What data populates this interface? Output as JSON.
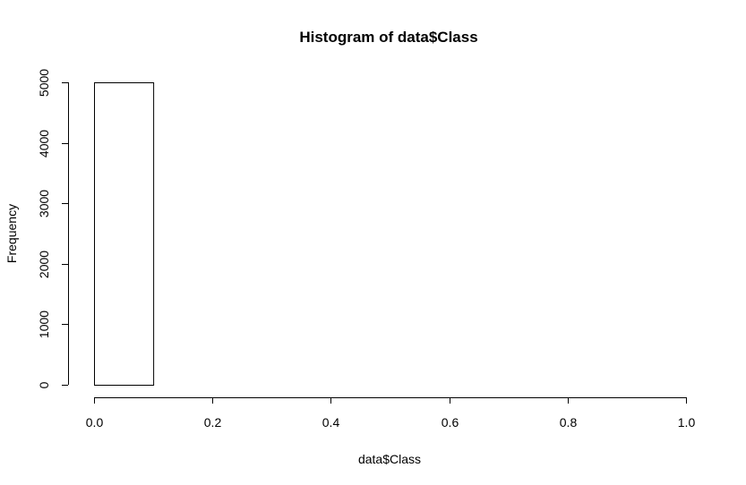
{
  "chart_data": {
    "type": "bar",
    "title": "Histogram of data$Class",
    "xlabel": "data$Class",
    "ylabel": "Frequency",
    "xlim": [
      0,
      1
    ],
    "ylim": [
      0,
      5000
    ],
    "bins": [
      {
        "start": 0.0,
        "end": 0.1,
        "count": 5000
      },
      {
        "start": 0.1,
        "end": 0.2,
        "count": 0
      },
      {
        "start": 0.2,
        "end": 0.3,
        "count": 0
      },
      {
        "start": 0.3,
        "end": 0.4,
        "count": 0
      },
      {
        "start": 0.4,
        "end": 0.5,
        "count": 0
      },
      {
        "start": 0.5,
        "end": 0.6,
        "count": 0
      },
      {
        "start": 0.6,
        "end": 0.7,
        "count": 0
      },
      {
        "start": 0.7,
        "end": 0.8,
        "count": 0
      },
      {
        "start": 0.8,
        "end": 0.9,
        "count": 0
      },
      {
        "start": 0.9,
        "end": 1.0,
        "count": 0
      }
    ],
    "x_ticks": [
      {
        "value": 0.0,
        "label": "0.0"
      },
      {
        "value": 0.2,
        "label": "0.2"
      },
      {
        "value": 0.4,
        "label": "0.4"
      },
      {
        "value": 0.6,
        "label": "0.6"
      },
      {
        "value": 0.8,
        "label": "0.8"
      },
      {
        "value": 1.0,
        "label": "1.0"
      }
    ],
    "y_ticks": [
      {
        "value": 0,
        "label": "0"
      },
      {
        "value": 1000,
        "label": "1000"
      },
      {
        "value": 2000,
        "label": "2000"
      },
      {
        "value": 3000,
        "label": "3000"
      },
      {
        "value": 4000,
        "label": "4000"
      },
      {
        "value": 5000,
        "label": "5000"
      }
    ],
    "grid": false,
    "colors": {
      "bar_fill": "#ffffff",
      "bar_stroke": "#000000",
      "axis": "#000000"
    }
  }
}
